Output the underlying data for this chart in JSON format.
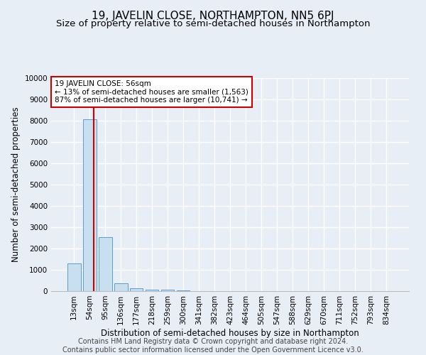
{
  "title": "19, JAVELIN CLOSE, NORTHAMPTON, NN5 6PJ",
  "subtitle": "Size of property relative to semi-detached houses in Northampton",
  "xlabel": "Distribution of semi-detached houses by size in Northampton",
  "ylabel": "Number of semi-detached properties",
  "footer_line1": "Contains HM Land Registry data © Crown copyright and database right 2024.",
  "footer_line2": "Contains public sector information licensed under the Open Government Licence v3.0.",
  "categories": [
    "13sqm",
    "54sqm",
    "95sqm",
    "136sqm",
    "177sqm",
    "218sqm",
    "259sqm",
    "300sqm",
    "341sqm",
    "382sqm",
    "423sqm",
    "464sqm",
    "505sqm",
    "547sqm",
    "588sqm",
    "629sqm",
    "670sqm",
    "711sqm",
    "752sqm",
    "793sqm",
    "834sqm"
  ],
  "values": [
    1310,
    8050,
    2550,
    375,
    130,
    75,
    60,
    50,
    0,
    0,
    0,
    0,
    0,
    0,
    0,
    0,
    0,
    0,
    0,
    0,
    0
  ],
  "bar_color": "#c8dff0",
  "bar_edge_color": "#5b9bd5",
  "bg_color": "#e8eef6",
  "grid_color": "#ffffff",
  "property_line_x": 1.28,
  "annotation_text_line1": "19 JAVELIN CLOSE: 56sqm",
  "annotation_text_line2": "← 13% of semi-detached houses are smaller (1,563)",
  "annotation_text_line3": "87% of semi-detached houses are larger (10,741) →",
  "annotation_box_color": "#ffffff",
  "annotation_box_edge": "#cc0000",
  "vline_color": "#cc0000",
  "ylim": [
    0,
    10000
  ],
  "yticks": [
    0,
    1000,
    2000,
    3000,
    4000,
    5000,
    6000,
    7000,
    8000,
    9000,
    10000
  ],
  "title_fontsize": 11,
  "subtitle_fontsize": 9.5,
  "label_fontsize": 8.5,
  "tick_fontsize": 7.5,
  "footer_fontsize": 7
}
